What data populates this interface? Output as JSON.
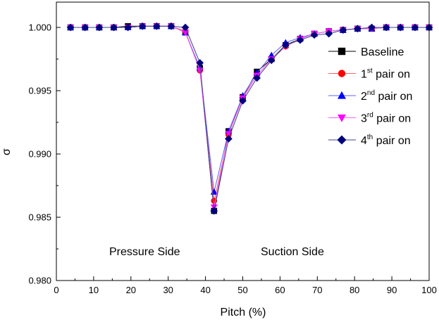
{
  "chart_data": {
    "type": "line",
    "xlabel": "Pitch (%)",
    "ylabel": "σ",
    "xlim": [
      0,
      100
    ],
    "ylim": [
      0.98,
      1.002
    ],
    "x_ticks": [
      "0",
      "10",
      "20",
      "30",
      "40",
      "50",
      "60",
      "70",
      "80",
      "90",
      "100"
    ],
    "y_ticks": [
      "0.980",
      "0.985",
      "0.990",
      "0.995",
      "1.000"
    ],
    "grid": false,
    "legend_position": "right",
    "annotations": [
      "Pressure Side",
      "Suction Side"
    ],
    "x": [
      3.8,
      7.7,
      11.5,
      15.4,
      19.2,
      23.1,
      26.9,
      30.8,
      34.6,
      38.5,
      42.3,
      46.2,
      50.0,
      53.8,
      57.7,
      61.5,
      65.4,
      69.2,
      73.1,
      76.9,
      80.8,
      84.6,
      88.5,
      92.3,
      96.2,
      100.0
    ],
    "series": [
      {
        "name": "Baseline",
        "name_parts": [
          "Baseline",
          "",
          ""
        ],
        "marker": "square",
        "color": "#000000",
        "line_color": "#000000",
        "values": [
          1.0,
          1.0,
          1.0,
          1.0,
          1.0001,
          1.0001,
          1.0001,
          1.0001,
          0.9996,
          0.9968,
          0.9855,
          0.9918,
          0.9945,
          0.9965,
          0.9975,
          0.9986,
          0.9991,
          0.9995,
          0.9997,
          0.9998,
          0.9999,
          0.9999,
          1.0,
          1.0,
          1.0,
          1.0
        ]
      },
      {
        "name": "1st pair on",
        "name_parts": [
          "1",
          "st",
          " pair on"
        ],
        "marker": "circle",
        "color": "#ff0000",
        "line_color": "#ff6060",
        "values": [
          1.0,
          1.0,
          1.0,
          1.0,
          1.0,
          1.0001,
          1.0001,
          1.0001,
          0.9997,
          0.9966,
          0.9863,
          0.9915,
          0.9945,
          0.9962,
          0.9975,
          0.9985,
          0.9991,
          0.9995,
          0.9997,
          0.9998,
          0.9999,
          0.9999,
          1.0,
          1.0,
          1.0,
          1.0
        ]
      },
      {
        "name": "2nd pair on",
        "name_parts": [
          "2",
          "nd",
          " pair on"
        ],
        "marker": "triangle-up",
        "color": "#0000ff",
        "line_color": "#6060ff",
        "values": [
          1.0,
          1.0,
          1.0,
          1.0,
          1.0,
          1.0001,
          1.0001,
          1.0001,
          0.9996,
          0.9968,
          0.987,
          0.9918,
          0.9946,
          0.9964,
          0.9978,
          0.9988,
          0.9992,
          0.9995,
          0.9997,
          0.9998,
          0.9999,
          0.9999,
          1.0,
          1.0,
          1.0,
          1.0
        ]
      },
      {
        "name": "3rd pair on",
        "name_parts": [
          "3",
          "rd",
          " pair on"
        ],
        "marker": "triangle-down",
        "color": "#ff00ff",
        "line_color": "#ff60ff",
        "values": [
          1.0,
          1.0,
          1.0,
          1.0,
          1.0,
          1.0001,
          1.0001,
          1.0001,
          0.9996,
          0.9966,
          0.9858,
          0.9916,
          0.9944,
          0.9962,
          0.9975,
          0.9985,
          0.9991,
          0.9995,
          0.9997,
          0.9998,
          0.9999,
          0.9999,
          1.0,
          1.0,
          1.0,
          1.0
        ]
      },
      {
        "name": "4th pair on",
        "name_parts": [
          "4",
          "th",
          " pair on"
        ],
        "marker": "diamond",
        "color": "#000080",
        "line_color": "#404090",
        "values": [
          1.0,
          1.0,
          1.0,
          1.0,
          1.0,
          1.0001,
          1.0001,
          1.0001,
          1.0,
          0.9972,
          0.9855,
          0.9912,
          0.9942,
          0.996,
          0.9974,
          0.9986,
          0.999,
          0.9994,
          0.9995,
          0.9998,
          0.9999,
          1.0,
          1.0,
          1.0,
          1.0,
          1.0
        ]
      }
    ]
  }
}
